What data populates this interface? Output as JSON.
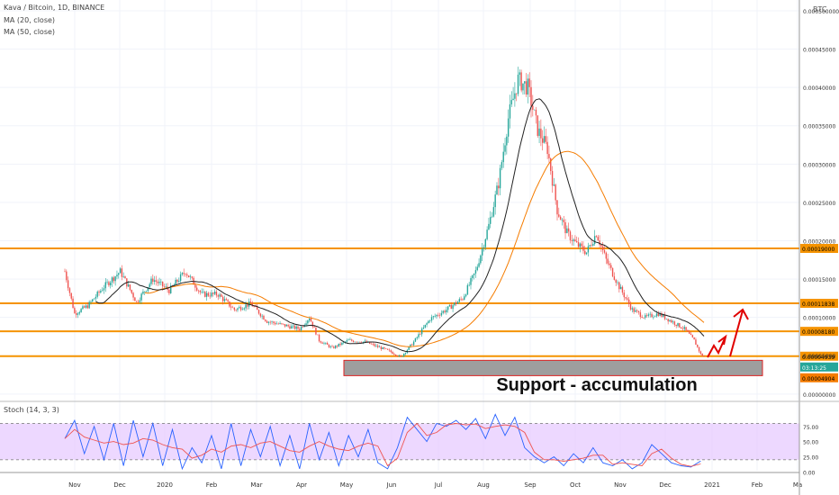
{
  "header": {
    "symbol_line": "Kava / Bitcoin, 1D, BINANCE",
    "ma20_label": "MA (20, close)",
    "ma50_label": "MA (50, close)",
    "currency": "BTC"
  },
  "stoch": {
    "label": "Stoch (14, 3, 3)",
    "ticks": [
      "75.00",
      "50.00",
      "25.00",
      "0.00"
    ]
  },
  "annotation": "Support - accumulation",
  "colors": {
    "up": "#26a69a",
    "down": "#ef5350",
    "ma20": "#222222",
    "ma50": "#f57c00",
    "hline": "#f59300",
    "stoch_band": "#e6c8ff",
    "stoch_k": "#2962ff",
    "stoch_d": "#ef5350",
    "support_box": "#9e9e9e",
    "arrow": "#e00000"
  },
  "chart_data": {
    "type": "candlestick",
    "title": "Kava / Bitcoin, 1D, BINANCE",
    "x_ticks": [
      "Nov",
      "Dec",
      "2020",
      "Feb",
      "Mar",
      "Apr",
      "May",
      "Jun",
      "Jul",
      "Aug",
      "Sep",
      "Oct",
      "Nov",
      "Dec",
      "2021",
      "Feb",
      "Ma"
    ],
    "y_ticks": [
      "0.000500000",
      "0.00045000",
      "0.00040000",
      "0.00035000",
      "0.00030000",
      "0.00025000",
      "0.00020000",
      "0.00015000",
      "0.00010000",
      "0.00005000",
      "0.00000000"
    ],
    "ylim": [
      -0.0,
      0.0005
    ],
    "horizontal_levels": [
      0.00019,
      0.00011838,
      8.18e-05,
      4.939e-05
    ],
    "price_labels": [
      "0.00019000",
      "0.00011838",
      "0.00008180",
      "0.00004939",
      "03:13:25",
      "0.00004904"
    ],
    "support_zone": {
      "low": 2.4e-05,
      "high": 4.4e-05
    },
    "price_path": [
      [
        0,
        0.00016
      ],
      [
        6,
        0.000105
      ],
      [
        14,
        0.000115
      ],
      [
        24,
        0.00014
      ],
      [
        34,
        0.00016
      ],
      [
        44,
        0.00012
      ],
      [
        54,
        0.00015
      ],
      [
        64,
        0.000135
      ],
      [
        74,
        0.00016
      ],
      [
        84,
        0.00013
      ],
      [
        94,
        0.00013
      ],
      [
        104,
        0.00011
      ],
      [
        114,
        0.000118
      ],
      [
        124,
        9.5e-05
      ],
      [
        134,
        9e-05
      ],
      [
        144,
        8.5e-05
      ],
      [
        150,
        0.0001
      ],
      [
        156,
        7e-05
      ],
      [
        164,
        6e-05
      ],
      [
        174,
        7e-05
      ],
      [
        184,
        6.8e-05
      ],
      [
        194,
        6e-05
      ],
      [
        200,
        5.5e-05
      ],
      [
        206,
        4.8e-05
      ],
      [
        214,
        6.8e-05
      ],
      [
        224,
        9.8e-05
      ],
      [
        234,
        0.00011
      ],
      [
        244,
        0.000125
      ],
      [
        252,
        0.00016
      ],
      [
        260,
        0.00022
      ],
      [
        266,
        0.000275
      ],
      [
        272,
        0.00036
      ],
      [
        278,
        0.00041
      ],
      [
        284,
        0.0004
      ],
      [
        290,
        0.000345
      ],
      [
        296,
        0.00032
      ],
      [
        302,
        0.00024
      ],
      [
        308,
        0.00021
      ],
      [
        314,
        0.000195
      ],
      [
        320,
        0.000185
      ],
      [
        326,
        0.00021
      ],
      [
        332,
        0.000175
      ],
      [
        340,
        0.00014
      ],
      [
        348,
        0.00011
      ],
      [
        356,
        0.0001
      ],
      [
        364,
        0.000105
      ],
      [
        372,
        9.5e-05
      ],
      [
        380,
        8.5e-05
      ],
      [
        386,
        7e-05
      ],
      [
        390,
        5.2e-05
      ],
      [
        392,
        4.9e-05
      ]
    ],
    "stoch_path": [
      [
        0,
        55
      ],
      [
        6,
        85
      ],
      [
        12,
        30
      ],
      [
        18,
        75
      ],
      [
        24,
        20
      ],
      [
        30,
        80
      ],
      [
        36,
        10
      ],
      [
        42,
        85
      ],
      [
        48,
        25
      ],
      [
        54,
        80
      ],
      [
        60,
        10
      ],
      [
        66,
        70
      ],
      [
        72,
        5
      ],
      [
        78,
        40
      ],
      [
        84,
        15
      ],
      [
        90,
        60
      ],
      [
        96,
        5
      ],
      [
        102,
        80
      ],
      [
        108,
        10
      ],
      [
        114,
        70
      ],
      [
        120,
        25
      ],
      [
        126,
        75
      ],
      [
        132,
        10
      ],
      [
        138,
        60
      ],
      [
        144,
        5
      ],
      [
        150,
        80
      ],
      [
        156,
        20
      ],
      [
        162,
        65
      ],
      [
        168,
        10
      ],
      [
        174,
        60
      ],
      [
        180,
        25
      ],
      [
        186,
        70
      ],
      [
        192,
        15
      ],
      [
        198,
        5
      ],
      [
        204,
        40
      ],
      [
        210,
        90
      ],
      [
        216,
        70
      ],
      [
        222,
        50
      ],
      [
        228,
        80
      ],
      [
        234,
        75
      ],
      [
        240,
        85
      ],
      [
        246,
        70
      ],
      [
        252,
        88
      ],
      [
        258,
        55
      ],
      [
        264,
        95
      ],
      [
        270,
        60
      ],
      [
        276,
        90
      ],
      [
        282,
        40
      ],
      [
        288,
        25
      ],
      [
        294,
        15
      ],
      [
        300,
        25
      ],
      [
        306,
        10
      ],
      [
        312,
        30
      ],
      [
        318,
        15
      ],
      [
        324,
        40
      ],
      [
        330,
        15
      ],
      [
        336,
        10
      ],
      [
        342,
        20
      ],
      [
        348,
        5
      ],
      [
        354,
        15
      ],
      [
        360,
        45
      ],
      [
        366,
        30
      ],
      [
        372,
        15
      ],
      [
        378,
        10
      ],
      [
        384,
        8
      ],
      [
        390,
        18
      ]
    ]
  }
}
